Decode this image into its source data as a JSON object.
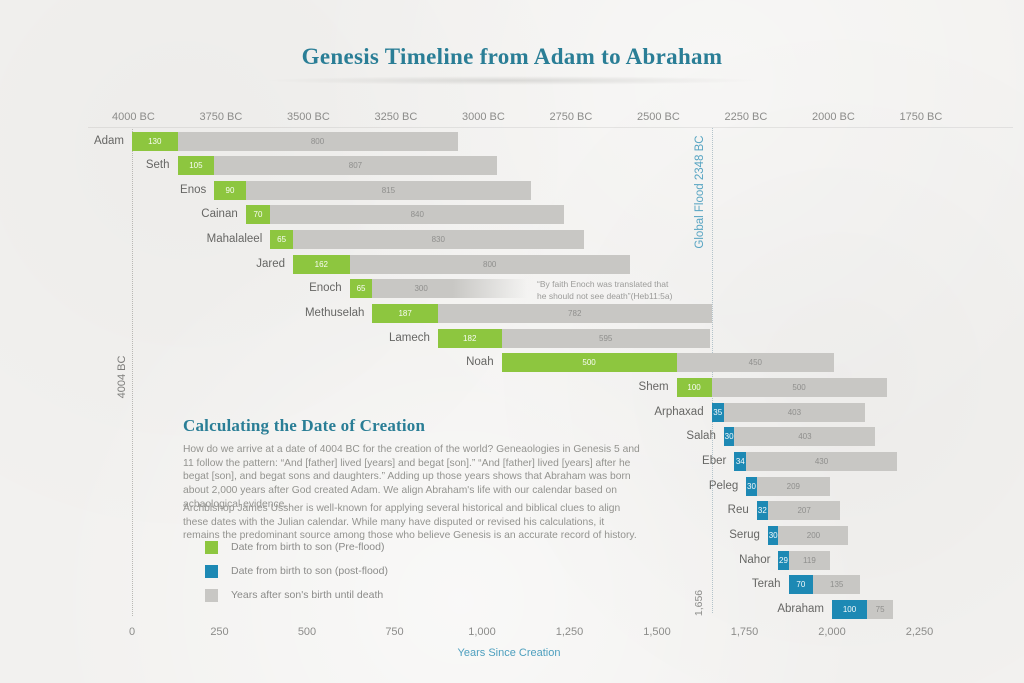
{
  "title": "Genesis Timeline from Adam to Abraham",
  "top_axis": {
    "ticks": [
      {
        "label": "4000 BC",
        "year": 4
      },
      {
        "label": "3750 BC",
        "year": 254
      },
      {
        "label": "3500 BC",
        "year": 504
      },
      {
        "label": "3250 BC",
        "year": 754
      },
      {
        "label": "3000 BC",
        "year": 1004
      },
      {
        "label": "2750 BC",
        "year": 1254
      },
      {
        "label": "2500 BC",
        "year": 1504
      },
      {
        "label": "2250 BC",
        "year": 1754
      },
      {
        "label": "2000 BC",
        "year": 2004
      },
      {
        "label": "1750 BC",
        "year": 2254
      }
    ]
  },
  "bottom_axis": {
    "ticks": [
      {
        "label": "0",
        "year": 0
      },
      {
        "label": "250",
        "year": 250
      },
      {
        "label": "500",
        "year": 500
      },
      {
        "label": "750",
        "year": 750
      },
      {
        "label": "1,000",
        "year": 1000
      },
      {
        "label": "1,250",
        "year": 1250
      },
      {
        "label": "1,500",
        "year": 1500
      },
      {
        "label": "1,750",
        "year": 1750
      },
      {
        "label": "2,000",
        "year": 2000
      },
      {
        "label": "2,250",
        "year": 2250
      }
    ],
    "axis_label": "Years Since Creation"
  },
  "markers": {
    "creation_label": "4004 BC",
    "flood_label": "Global Flood 2348 BC",
    "flood_year_label": "1,656",
    "flood_year": 1656
  },
  "chart_data": {
    "type": "bar",
    "orientation": "horizontal",
    "unit": "years since creation",
    "rows": [
      {
        "name": "Adam",
        "start": 0,
        "birth_to_son": 130,
        "after_years": 800,
        "phase": "pre",
        "fade": false
      },
      {
        "name": "Seth",
        "start": 130,
        "birth_to_son": 105,
        "after_years": 807,
        "phase": "pre",
        "fade": false
      },
      {
        "name": "Enos",
        "start": 235,
        "birth_to_son": 90,
        "after_years": 815,
        "phase": "pre",
        "fade": false
      },
      {
        "name": "Cainan",
        "start": 325,
        "birth_to_son": 70,
        "after_years": 840,
        "phase": "pre",
        "fade": false
      },
      {
        "name": "Mahalaleel",
        "start": 395,
        "birth_to_son": 65,
        "after_years": 830,
        "phase": "pre",
        "fade": false
      },
      {
        "name": "Jared",
        "start": 460,
        "birth_to_son": 162,
        "after_years": 800,
        "phase": "pre",
        "fade": false
      },
      {
        "name": "Enoch",
        "start": 622,
        "birth_to_son": 65,
        "after_years": 300,
        "phase": "pre",
        "fade": true
      },
      {
        "name": "Methuselah",
        "start": 687,
        "birth_to_son": 187,
        "after_years": 782,
        "phase": "pre",
        "fade": false
      },
      {
        "name": "Lamech",
        "start": 874,
        "birth_to_son": 182,
        "after_years": 595,
        "phase": "pre",
        "fade": false
      },
      {
        "name": "Noah",
        "start": 1056,
        "birth_to_son": 500,
        "after_years": 450,
        "phase": "pre",
        "fade": false
      },
      {
        "name": "Shem",
        "start": 1556,
        "birth_to_son": 100,
        "after_years": 500,
        "phase": "pre",
        "fade": false
      },
      {
        "name": "Arphaxad",
        "start": 1656,
        "birth_to_son": 35,
        "after_years": 403,
        "phase": "post",
        "fade": false
      },
      {
        "name": "Salah",
        "start": 1691,
        "birth_to_son": 30,
        "after_years": 403,
        "phase": "post",
        "fade": false
      },
      {
        "name": "Eber",
        "start": 1721,
        "birth_to_son": 34,
        "after_years": 430,
        "phase": "post",
        "fade": false
      },
      {
        "name": "Peleg",
        "start": 1755,
        "birth_to_son": 30,
        "after_years": 209,
        "phase": "post",
        "fade": false
      },
      {
        "name": "Reu",
        "start": 1785,
        "birth_to_son": 32,
        "after_years": 207,
        "phase": "post",
        "fade": false
      },
      {
        "name": "Serug",
        "start": 1817,
        "birth_to_son": 30,
        "after_years": 200,
        "phase": "post",
        "fade": false
      },
      {
        "name": "Nahor",
        "start": 1847,
        "birth_to_son": 29,
        "after_years": 119,
        "phase": "post",
        "fade": false
      },
      {
        "name": "Terah",
        "start": 1876,
        "birth_to_son": 70,
        "after_years": 135,
        "phase": "post",
        "fade": false
      },
      {
        "name": "Abraham",
        "start": 2000,
        "birth_to_son": 100,
        "after_years": 75,
        "phase": "post",
        "fade": false
      }
    ],
    "annotation": {
      "line1": "“By faith Enoch was translated that",
      "line2": "he should not see death”(Heb11:5a)"
    },
    "title": "Genesis Timeline from Adam to Abraham",
    "xlabel": "Years Since Creation",
    "xlim": [
      0,
      2400
    ],
    "grid": false,
    "legend_position": "bottom-left"
  },
  "info": {
    "heading": "Calculating the Date of Creation",
    "paragraph1": "How do we arrive at a date of 4004 BC for the creation of the world? Geneaologies in Genesis 5 and 11 follow the pattern: “And [father] lived [years] and begat [son].” “And [father] lived [years] after he begat [son], and begat sons and daughters.” Adding up those years shows that Abraham was born about 2,000 years after God created Adam. We align Abraham's life with our calendar based on achaological evidence.",
    "paragraph2": "Archbishop James Ussher is well-known for applying several historical and biblical clues to align these dates with the Julian calendar. While many have disputed or revised his calculations, it remains the predominant source among those who believe Genesis is an accurate record of history."
  },
  "legend": [
    {
      "color": "#8DC63F",
      "label": "Date from birth to son (Pre-flood)"
    },
    {
      "color": "#1D89B4",
      "label": "Date from birth to son (post-flood)"
    },
    {
      "color": "#C8C7C4",
      "label": "Years after son's birth until death"
    }
  ],
  "colors": {
    "pre_flood_green": "#8DC63F",
    "post_flood_blue": "#1D89B4",
    "after_gray": "#C8C7C4",
    "accent_teal": "#2A7E96",
    "light_teal": "#4D9FBE",
    "background": "#F2F1EF"
  }
}
